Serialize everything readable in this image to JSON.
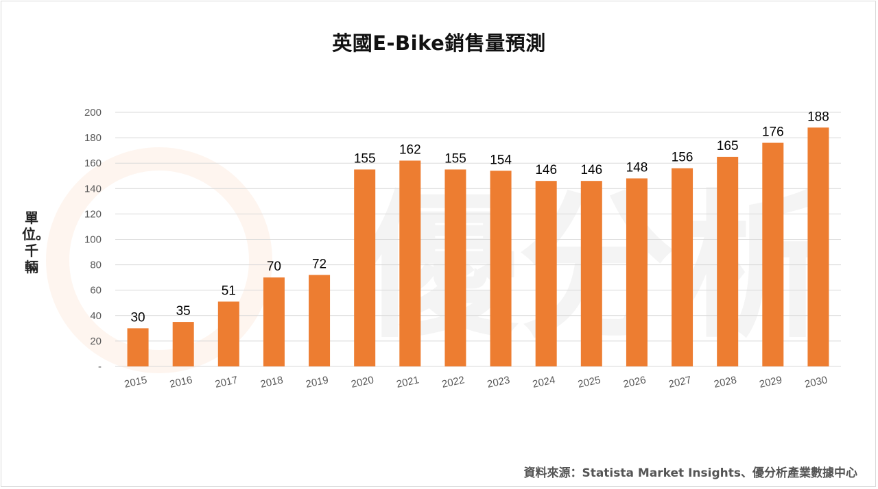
{
  "title": "英國E-Bike銷售量預測",
  "y_unit_label": "單位。千輛",
  "source": "資料來源：Statista Market Insights、優分析產業數據中心",
  "watermark": "優分析",
  "colors": {
    "bar": "#ED7D31",
    "grid": "#d9d9d9",
    "axis_text": "#595959",
    "label_text": "#000000",
    "watermark": "#ED7D31"
  },
  "chart_data": {
    "type": "bar",
    "title": "英國E-Bike銷售量預測",
    "ylabel": "單位。千輛",
    "categories": [
      "2015",
      "2016",
      "2017",
      "2018",
      "2019",
      "2020",
      "2021",
      "2022",
      "2023",
      "2024",
      "2025",
      "2026",
      "2027",
      "2028",
      "2029",
      "2030"
    ],
    "values": [
      30,
      35,
      51,
      70,
      72,
      155,
      162,
      155,
      154,
      146,
      146,
      148,
      156,
      165,
      176,
      188
    ],
    "yticks": [
      "-",
      "20",
      "40",
      "60",
      "80",
      "100",
      "120",
      "140",
      "160",
      "180",
      "200"
    ],
    "ylim": [
      0,
      200
    ],
    "grid": true,
    "data_labels": true,
    "legend": "none"
  }
}
